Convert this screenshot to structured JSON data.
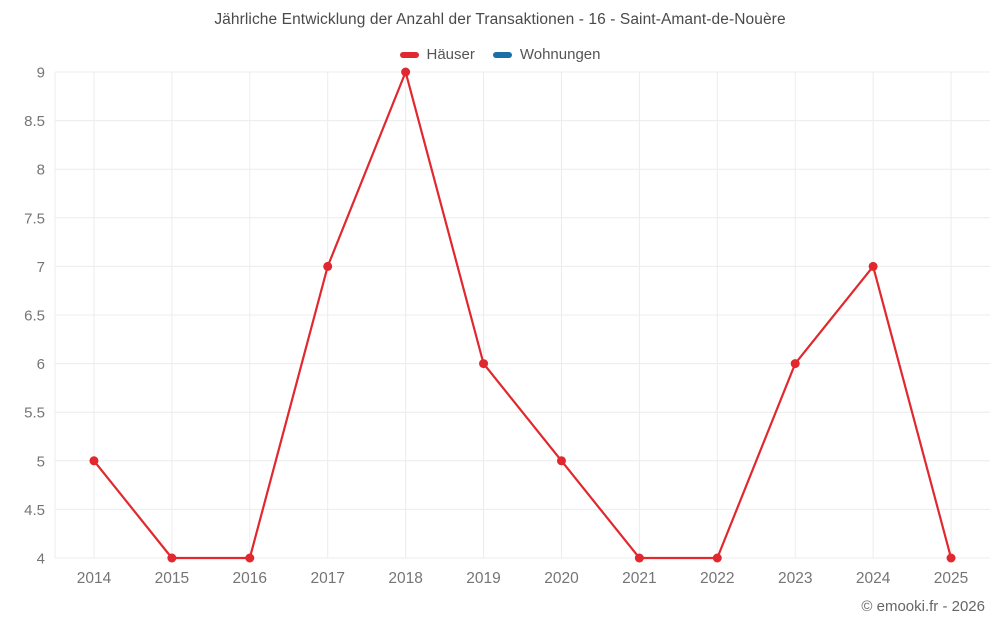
{
  "title": "Jährliche Entwicklung der Anzahl der Transaktionen - 16 - Saint-Amant-de-Nouère",
  "legend": [
    {
      "label": "Häuser",
      "color": "#e0282e"
    },
    {
      "label": "Wohnungen",
      "color": "#1a6fa8"
    }
  ],
  "footer": "© emooki.fr - 2026",
  "colors": {
    "grid": "#ececec",
    "axis_text": "#757575",
    "title_text": "#4a4a4a",
    "footer_text": "#666666",
    "background": "#ffffff"
  },
  "chart_data": {
    "type": "line",
    "categories": [
      "2014",
      "2015",
      "2016",
      "2017",
      "2018",
      "2019",
      "2020",
      "2021",
      "2022",
      "2023",
      "2024",
      "2025"
    ],
    "series": [
      {
        "name": "Häuser",
        "color": "#e0282e",
        "values": [
          5,
          4,
          4,
          7,
          9,
          6,
          5,
          4,
          4,
          6,
          7,
          4
        ]
      },
      {
        "name": "Wohnungen",
        "color": "#1a6fa8",
        "values": []
      }
    ],
    "title": "Jährliche Entwicklung der Anzahl der Transaktionen - 16 - Saint-Amant-de-Nouère",
    "xlabel": "",
    "ylabel": "",
    "ylim": [
      4,
      9
    ],
    "ytick_step": 0.5,
    "grid": true,
    "legend_position": "top"
  }
}
